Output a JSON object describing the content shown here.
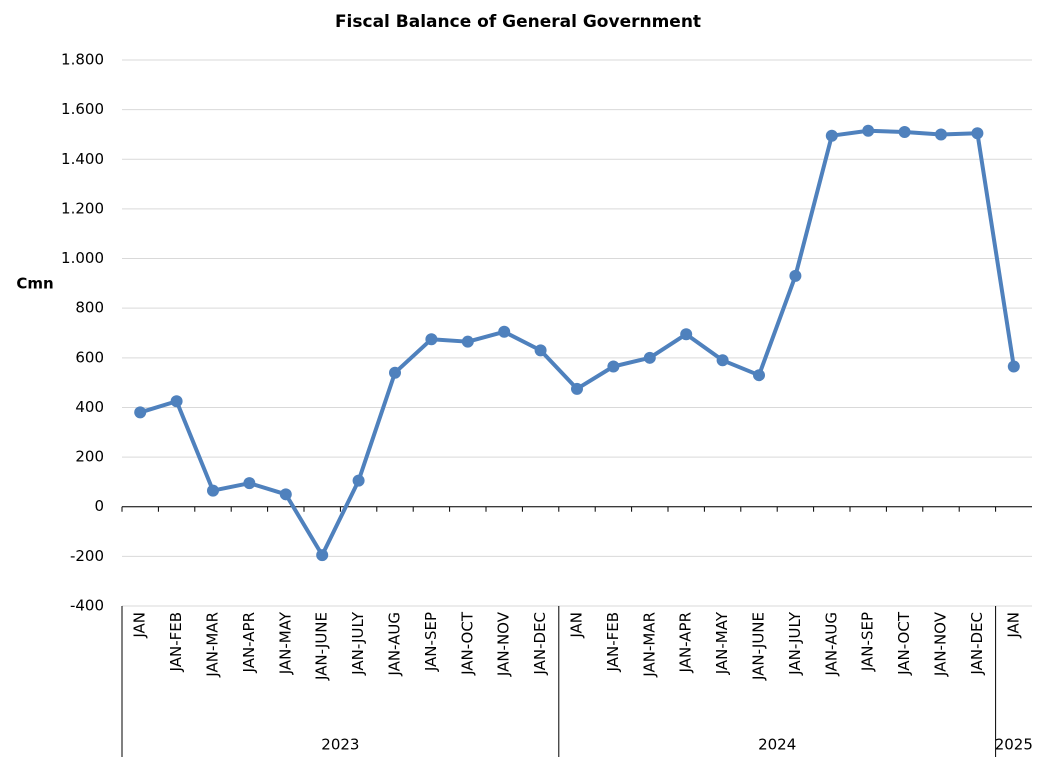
{
  "chart_data": {
    "type": "line",
    "title": "Fiscal Balance of General Government",
    "y_label": "Cmn",
    "groups": [
      {
        "name": "2023",
        "categories": [
          "JAN",
          "JAN-FEB",
          "JAN-MAR",
          "JAN-APR",
          "JAN-MAY",
          "JAN-JUNE",
          "JAN-JULY",
          "JAN-AUG",
          "JAN-SEP",
          "JAN-OCT",
          "JAN-NOV",
          "JAN-DEC"
        ]
      },
      {
        "name": "2024",
        "categories": [
          "JAN",
          "JAN-FEB",
          "JAN-MAR",
          "JAN-APR",
          "JAN-MAY",
          "JAN-JUNE",
          "JAN-JULY",
          "JAN-AUG",
          "JAN-SEP",
          "JAN-OCT",
          "JAN-NOV",
          "JAN-DEC"
        ]
      },
      {
        "name": "2025",
        "categories": [
          "JAN"
        ]
      }
    ],
    "values": [
      380,
      425,
      65,
      95,
      50,
      -195,
      105,
      540,
      675,
      665,
      705,
      630,
      475,
      565,
      600,
      695,
      590,
      530,
      930,
      1495,
      1515,
      1510,
      1500,
      1505,
      565
    ],
    "color": "#4f81bd",
    "ylim": [
      -400,
      1800
    ],
    "yticks": [
      -400,
      -200,
      0,
      200,
      400,
      600,
      800,
      {
        "value": 1000,
        "label": "1.000"
      },
      {
        "value": 1200,
        "label": "1.200"
      },
      {
        "value": 1400,
        "label": "1.400"
      },
      {
        "value": 1600,
        "label": "1.600"
      },
      {
        "value": 1800,
        "label": "1.800"
      }
    ],
    "grid": true
  }
}
